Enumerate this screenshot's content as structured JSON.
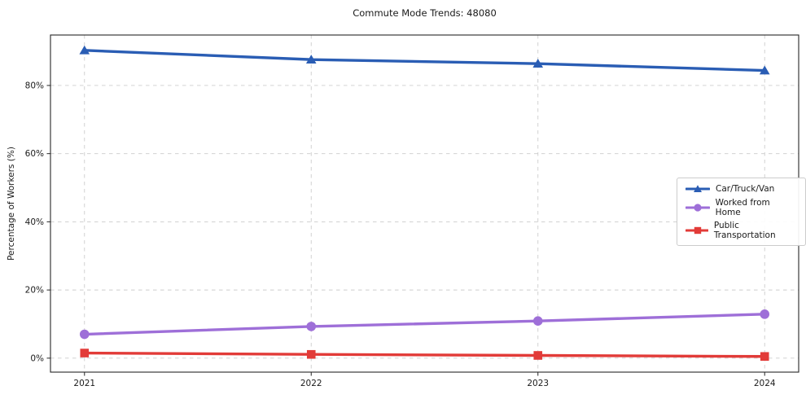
{
  "figure": {
    "background": "#ffffff"
  },
  "chart_data": {
    "type": "line",
    "title": "Commute Mode Trends: 48080",
    "xlabel": "",
    "ylabel": "Percentage of Workers (%)",
    "x": [
      2021,
      2022,
      2023,
      2024
    ],
    "x_tick_labels": [
      "2021",
      "2022",
      "2023",
      "2024"
    ],
    "y_ticks": [
      0,
      20,
      40,
      60,
      80
    ],
    "y_tick_labels": [
      "0%",
      "20%",
      "40%",
      "60%",
      "80%"
    ],
    "ylim": [
      -4.1,
      94.8
    ],
    "grid": true,
    "grid_style": "dashed",
    "legend_position": "center right",
    "series": [
      {
        "name": "Car/Truck/Van",
        "marker": "triangle",
        "color": "#2a5db4",
        "values": [
          90.3,
          87.6,
          86.4,
          84.4
        ]
      },
      {
        "name": "Worked from Home",
        "marker": "circle",
        "color": "#9e6fd8",
        "values": [
          7.0,
          9.3,
          10.9,
          12.9
        ]
      },
      {
        "name": "Public Transportation",
        "marker": "square",
        "color": "#e23b38",
        "values": [
          1.5,
          1.1,
          0.8,
          0.5
        ]
      }
    ]
  }
}
